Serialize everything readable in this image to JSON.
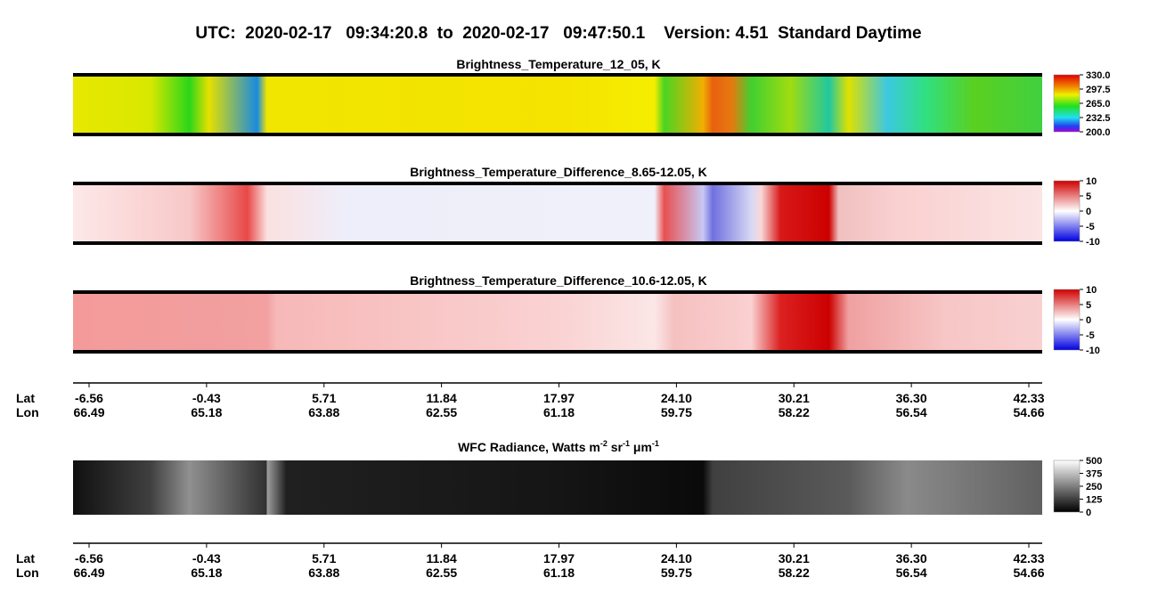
{
  "header": {
    "title": "UTC:  2020-02-17   09:34:20.8  to  2020-02-17   09:47:50.1    Version: 4.51  Standard Daytime"
  },
  "panels": [
    {
      "title": "Brightness_Temperature_12_05, K",
      "colorbar": [
        "330.0",
        "297.5",
        "265.0",
        "232.5",
        "200.0"
      ]
    },
    {
      "title": "Brightness_Temperature_Difference_8.65-12.05, K",
      "colorbar": [
        "10",
        "5",
        "0",
        "-5",
        "-10"
      ]
    },
    {
      "title": "Brightness_Temperature_Difference_10.6-12.05, K",
      "colorbar": [
        "10",
        "5",
        "0",
        "-5",
        "-10"
      ]
    },
    {
      "title_parts": [
        "WFC Radiance, Watts m",
        "-2",
        " sr",
        "-1",
        " μm",
        "-1"
      ],
      "colorbar": [
        "500",
        "375",
        "250",
        "125",
        "0"
      ]
    }
  ],
  "axes": [
    {
      "lat_label": "Lat",
      "lon_label": "Lon",
      "lat": [
        "-6.56",
        "-0.43",
        "5.71",
        "11.84",
        "17.97",
        "24.10",
        "30.21",
        "36.30",
        "42.33"
      ],
      "lon": [
        "66.49",
        "65.18",
        "63.88",
        "62.55",
        "61.18",
        "59.75",
        "58.22",
        "56.54",
        "54.66"
      ]
    },
    {
      "lat_label": "Lat",
      "lon_label": "Lon",
      "lat": [
        "-6.56",
        "-0.43",
        "5.71",
        "11.84",
        "17.97",
        "24.10",
        "30.21",
        "36.30",
        "42.33"
      ],
      "lon": [
        "66.49",
        "65.18",
        "63.88",
        "62.55",
        "61.18",
        "59.75",
        "58.22",
        "56.54",
        "54.66"
      ]
    }
  ]
}
